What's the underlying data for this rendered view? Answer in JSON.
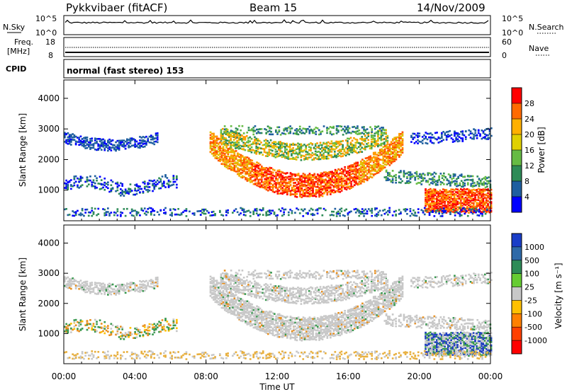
{
  "header": {
    "station": "Pykkvibaer (fitACF)",
    "beam": "Beam 15",
    "date": "14/Nov/2009"
  },
  "info_panels": {
    "nsky_label": "N.Sky",
    "nsearch_label": "N.Search",
    "nsky_ticks": [
      "10^5",
      "10^0"
    ],
    "nsearch_ticks": [
      "10^5",
      "10^0"
    ],
    "freq_label": "Freq.",
    "freq_unit": "[MHz]",
    "freq_ticks": [
      "18",
      "8"
    ],
    "nave_label": "Nave",
    "nave_ticks": [
      "60",
      "0"
    ],
    "cpid_label": "CPID",
    "cpid_text": "normal (fast stereo) 153"
  },
  "chart_data": [
    {
      "type": "heatmap",
      "ylabel": "Slant Range [km]",
      "y_ticks": [
        "4000",
        "3000",
        "2000",
        "1000"
      ],
      "x_ticks": [
        "00:00",
        "04:00",
        "08:00",
        "12:00",
        "16:00",
        "20:00",
        "00:00"
      ],
      "colorbar": {
        "label": "Power [dB]",
        "ticks": [
          "28",
          "24",
          "20",
          "16",
          "12",
          "8",
          "4"
        ],
        "colors": [
          "#ff0000",
          "#ff6a00",
          "#ffb000",
          "#e0d000",
          "#66bb44",
          "#2e8b57",
          "#1f5fa0",
          "#0000ff"
        ]
      }
    },
    {
      "type": "heatmap",
      "ylabel": "Slant Range [km]",
      "y_ticks": [
        "4000",
        "3000",
        "2000",
        "1000"
      ],
      "x_ticks": [
        "00:00",
        "04:00",
        "08:00",
        "12:00",
        "16:00",
        "20:00",
        "00:00"
      ],
      "xlabel": "Time UT",
      "colorbar": {
        "label": "Velocity [m s⁻¹]",
        "ticks": [
          "1000",
          "500",
          "100",
          "25",
          "-25",
          "-100",
          "-500",
          "-1000"
        ],
        "colors": [
          "#1a3ec8",
          "#2f6aa8",
          "#2e8b57",
          "#66cc33",
          "#c8c8c8",
          "#ffc000",
          "#ff8000",
          "#ff4000",
          "#ff0000"
        ]
      }
    }
  ],
  "palette": {
    "noise_line": "#000000",
    "power_red": "#ff1a00",
    "power_orange": "#ff9900",
    "power_green": "#4fa857",
    "power_blue": "#2850b0",
    "velocity_gray": "#c8c8c8",
    "velocity_green": "#3a9a50",
    "velocity_orange": "#e89020",
    "velocity_blue": "#2040c0"
  }
}
